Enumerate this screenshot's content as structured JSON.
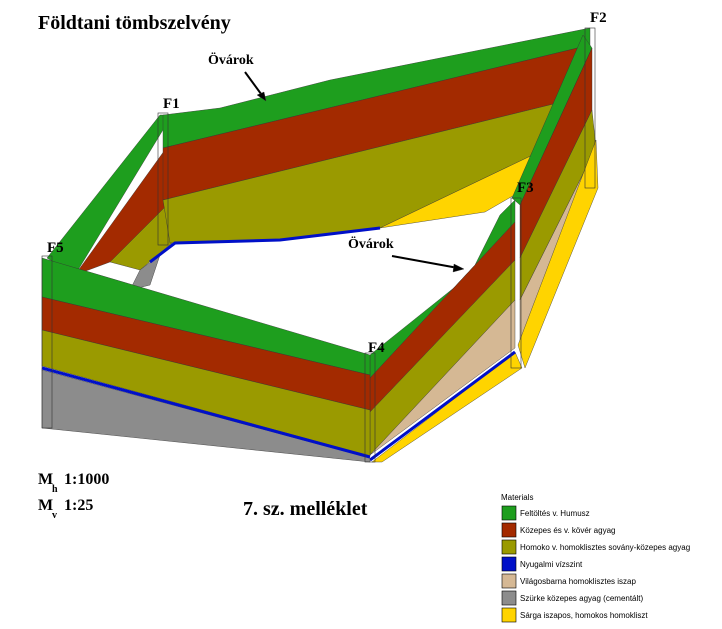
{
  "title": "Földtani tömbszelvény",
  "annotations": [
    "Övárok",
    "Övárok"
  ],
  "boreholes": [
    "F1",
    "F2",
    "F3",
    "F4",
    "F5"
  ],
  "scale": [
    {
      "symbol": "M",
      "sub": "h",
      "ratio": "1:1000"
    },
    {
      "symbol": "M",
      "sub": "v",
      "ratio": "1:25"
    }
  ],
  "appendix": "7. sz. melléklet",
  "legend": {
    "title": "Materials",
    "items": [
      {
        "label": "Feltöltés v. Humusz",
        "color": "#1e9e1e"
      },
      {
        "label": "Közepes és v. kövér agyag",
        "color": "#a32a00"
      },
      {
        "label": "Homoko v. homoklisztes sovány-közepes agyag",
        "color": "#9a9a00"
      },
      {
        "label": "Nyugalmi vízszint",
        "color": "#0010c8"
      },
      {
        "label": "Világosbarna homoklisztes iszap",
        "color": "#d5b894"
      },
      {
        "label": "Szürke közepes agyag (cementált)",
        "color": "#8c8c8c"
      },
      {
        "label": "Sárga iszapos, homokos homokliszt",
        "color": "#ffd400"
      }
    ]
  }
}
